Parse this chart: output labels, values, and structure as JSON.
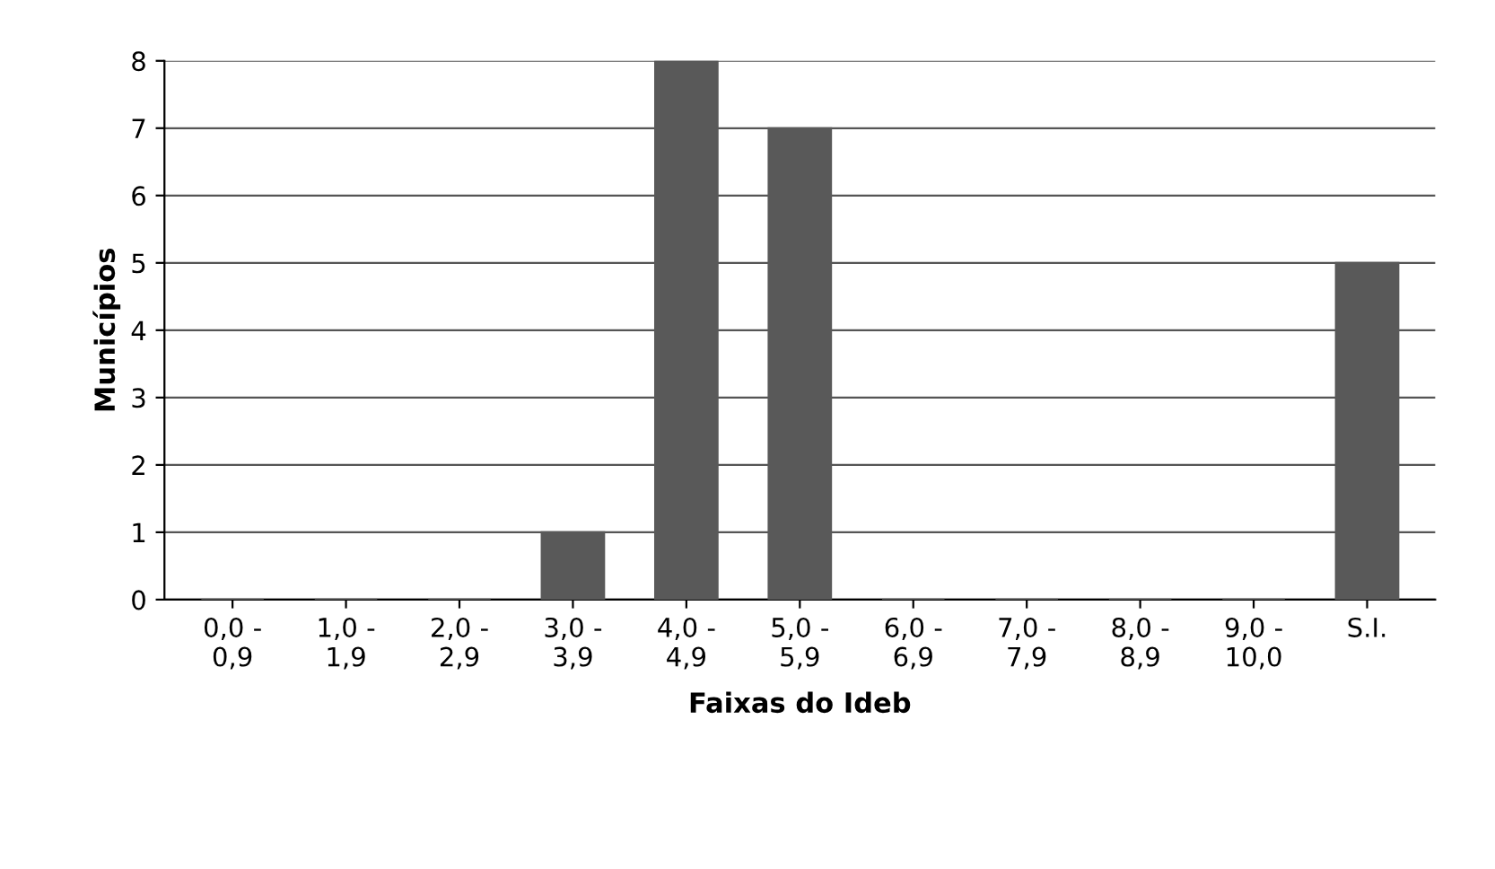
{
  "chart_data": {
    "type": "bar",
    "xlabel": "Faixas do Ideb",
    "ylabel": "Municípios",
    "categories": [
      "0,0 -\n0,9",
      "1,0 -\n1,9",
      "2,0 -\n2,9",
      "3,0 -\n3,9",
      "4,0 -\n4,9",
      "5,0 -\n5,9",
      "6,0 -\n6,9",
      "7,0 -\n7,9",
      "8,0 -\n8,9",
      "9,0 -\n10,0",
      "S.I."
    ],
    "values": [
      0,
      0,
      0,
      1,
      8,
      7,
      0,
      0,
      0,
      0,
      5
    ],
    "color": "#595959",
    "ylim": [
      0,
      8
    ],
    "yticks": [
      0,
      1,
      2,
      3,
      4,
      5,
      6,
      7,
      8
    ],
    "grid": "y",
    "legend": false
  }
}
